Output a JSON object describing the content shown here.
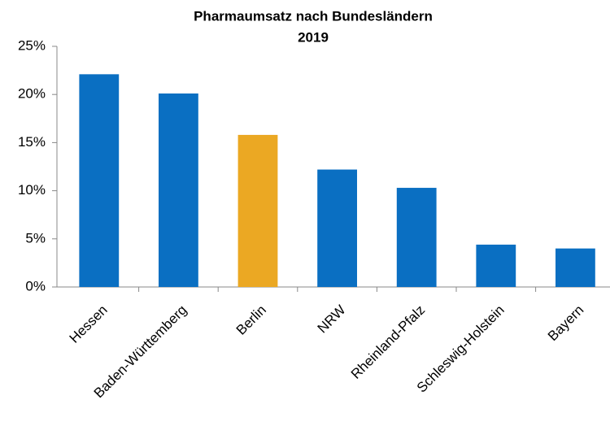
{
  "chart_data": {
    "type": "bar",
    "title": [
      "Pharmaumsatz nach Bundesländern",
      "2019"
    ],
    "categories": [
      "Hessen",
      "Baden-Württemberg",
      "Berlin",
      "NRW",
      "Rheinland-Pfalz",
      "Schleswig-Holstein",
      "Bayern"
    ],
    "values": [
      22.1,
      20.1,
      15.8,
      12.2,
      10.3,
      4.4,
      4.0
    ],
    "colors": [
      "#0a6fc2",
      "#0a6fc2",
      "#eba823",
      "#0a6fc2",
      "#0a6fc2",
      "#0a6fc2",
      "#0a6fc2"
    ],
    "ylim": [
      0,
      25
    ],
    "yticks": [
      {
        "value": 0,
        "label": "0%"
      },
      {
        "value": 5,
        "label": "5%"
      },
      {
        "value": 10,
        "label": "10%"
      },
      {
        "value": 15,
        "label": "15%"
      },
      {
        "value": 20,
        "label": "20%"
      },
      {
        "value": 25,
        "label": "25%"
      }
    ],
    "grid": false
  }
}
